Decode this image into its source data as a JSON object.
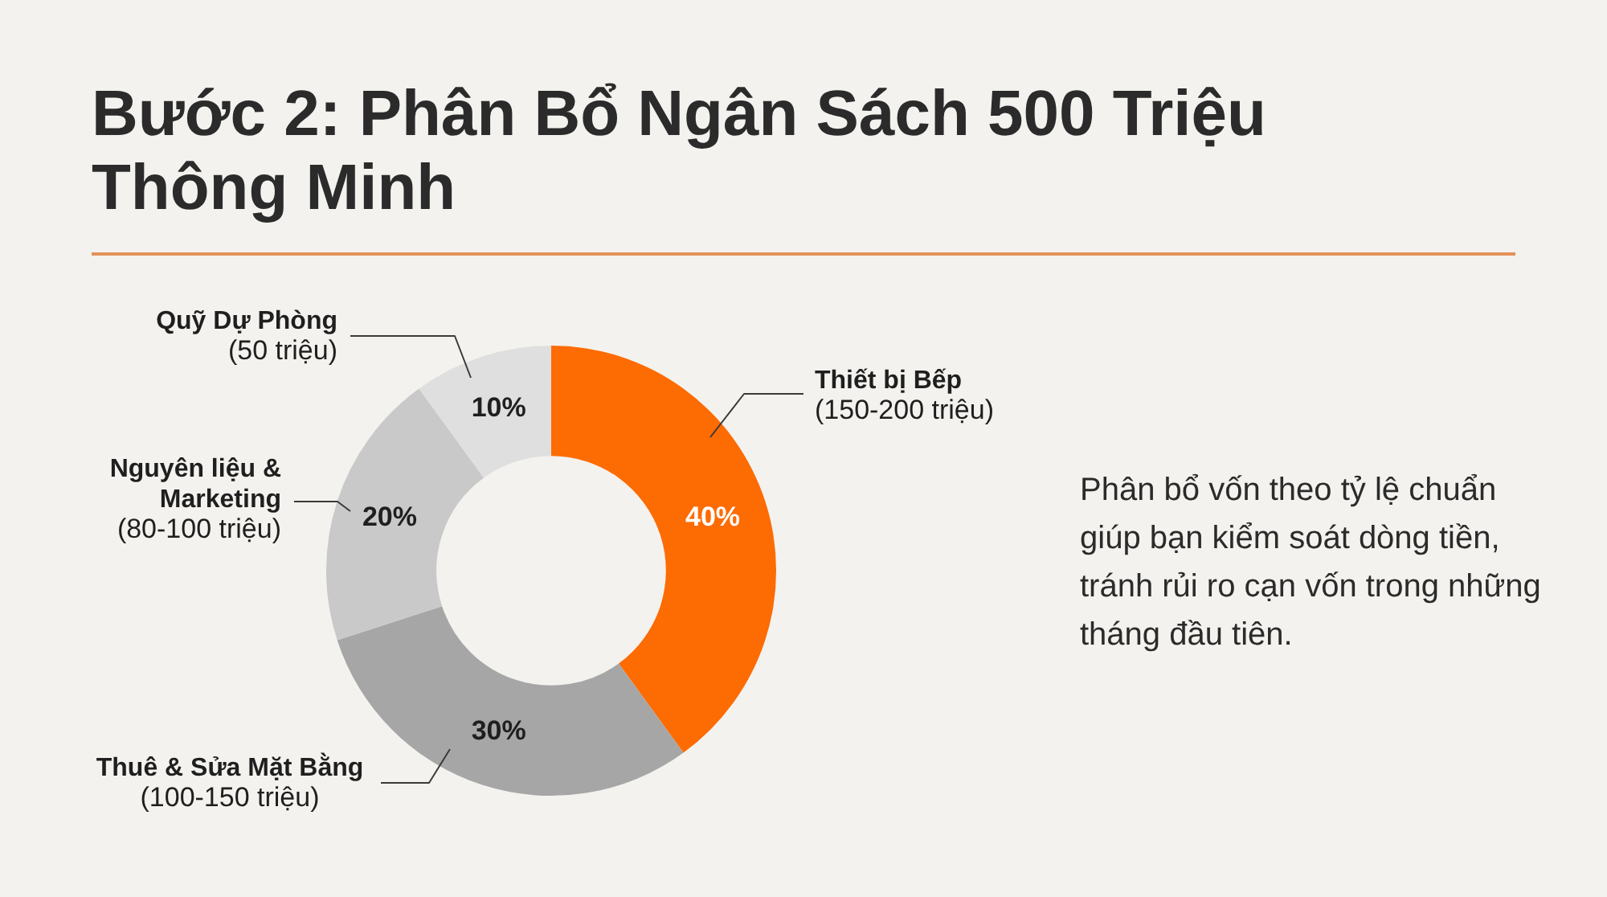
{
  "chart_data": {
    "type": "donut",
    "title": "Bước 2: Phân Bổ Ngân Sách 500 Triệu Thông Minh",
    "categories": [
      "Thiết bị Bếp",
      "Thuê & Sửa Mặt Bằng",
      "Nguyên liệu & Marketing",
      "Quỹ Dự Phòng"
    ],
    "values": [
      40,
      30,
      20,
      10
    ],
    "colors": [
      "#fd6b03",
      "#a6a6a6",
      "#c9c9c9",
      "#dfdfdf"
    ],
    "value_labels": [
      "40%",
      "30%",
      "20%",
      "10%"
    ],
    "annotations": [
      {
        "text": "(150-200 triệu)",
        "x": "Thiết bị Bếp"
      },
      {
        "text": "(100-150 triệu)",
        "x": "Thuê & Sửa Mặt Bằng"
      },
      {
        "text": "(80-100 triệu)",
        "x": "Nguyên liệu & Marketing"
      },
      {
        "text": "(50 triệu)",
        "x": "Quỹ Dự Phòng"
      },
      "Phân bổ vốn theo tỷ lệ chuẩn giúp bạn kiểm soát dòng tiền, tránh rủi ro cạn vốn trong những tháng đầu tiên."
    ]
  }
}
